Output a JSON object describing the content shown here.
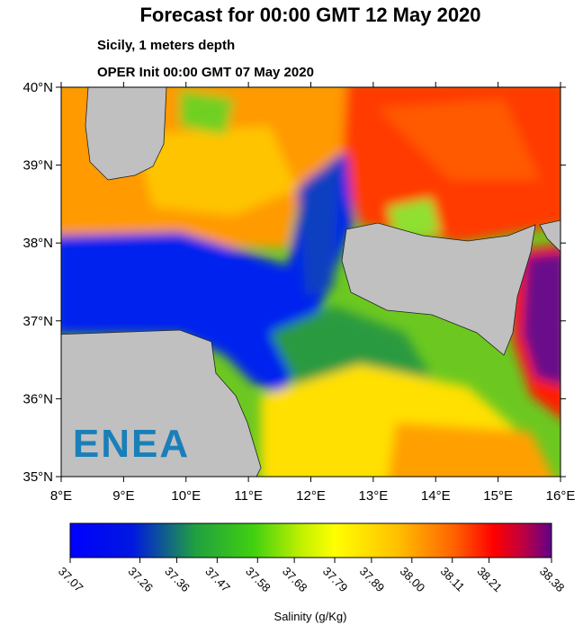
{
  "title": "Forecast for 00:00 GMT  12 May 2020",
  "subtitle": "Sicily, 1 meters depth",
  "init": "OPER Init 00:00 GMT  07 May 2020",
  "logo": "ENEA",
  "map": {
    "xlim": [
      8,
      16
    ],
    "ylim": [
      35,
      40
    ],
    "xticks": [
      {
        "value": 8,
        "label": "8°E"
      },
      {
        "value": 9,
        "label": "9°E"
      },
      {
        "value": 10,
        "label": "10°E"
      },
      {
        "value": 11,
        "label": "11°E"
      },
      {
        "value": 12,
        "label": "12°E"
      },
      {
        "value": 13,
        "label": "13°E"
      },
      {
        "value": 14,
        "label": "14°E"
      },
      {
        "value": 15,
        "label": "15°E"
      },
      {
        "value": 16,
        "label": "16°E"
      }
    ],
    "yticks": [
      {
        "value": 35,
        "label": "35°N"
      },
      {
        "value": 36,
        "label": "36°N"
      },
      {
        "value": 37,
        "label": "37°N"
      },
      {
        "value": 38,
        "label": "38°N"
      },
      {
        "value": 39,
        "label": "39°N"
      },
      {
        "value": 40,
        "label": "40°N"
      }
    ]
  },
  "colorbar": {
    "label": "Salinity (g/Kg)",
    "lim": [
      37.07,
      38.38
    ],
    "ticks": [
      37.07,
      37.26,
      37.36,
      37.47,
      37.58,
      37.68,
      37.79,
      37.89,
      {
        "value": 38,
        "label": "38.00"
      },
      38.11,
      38.21,
      38.38
    ]
  }
}
